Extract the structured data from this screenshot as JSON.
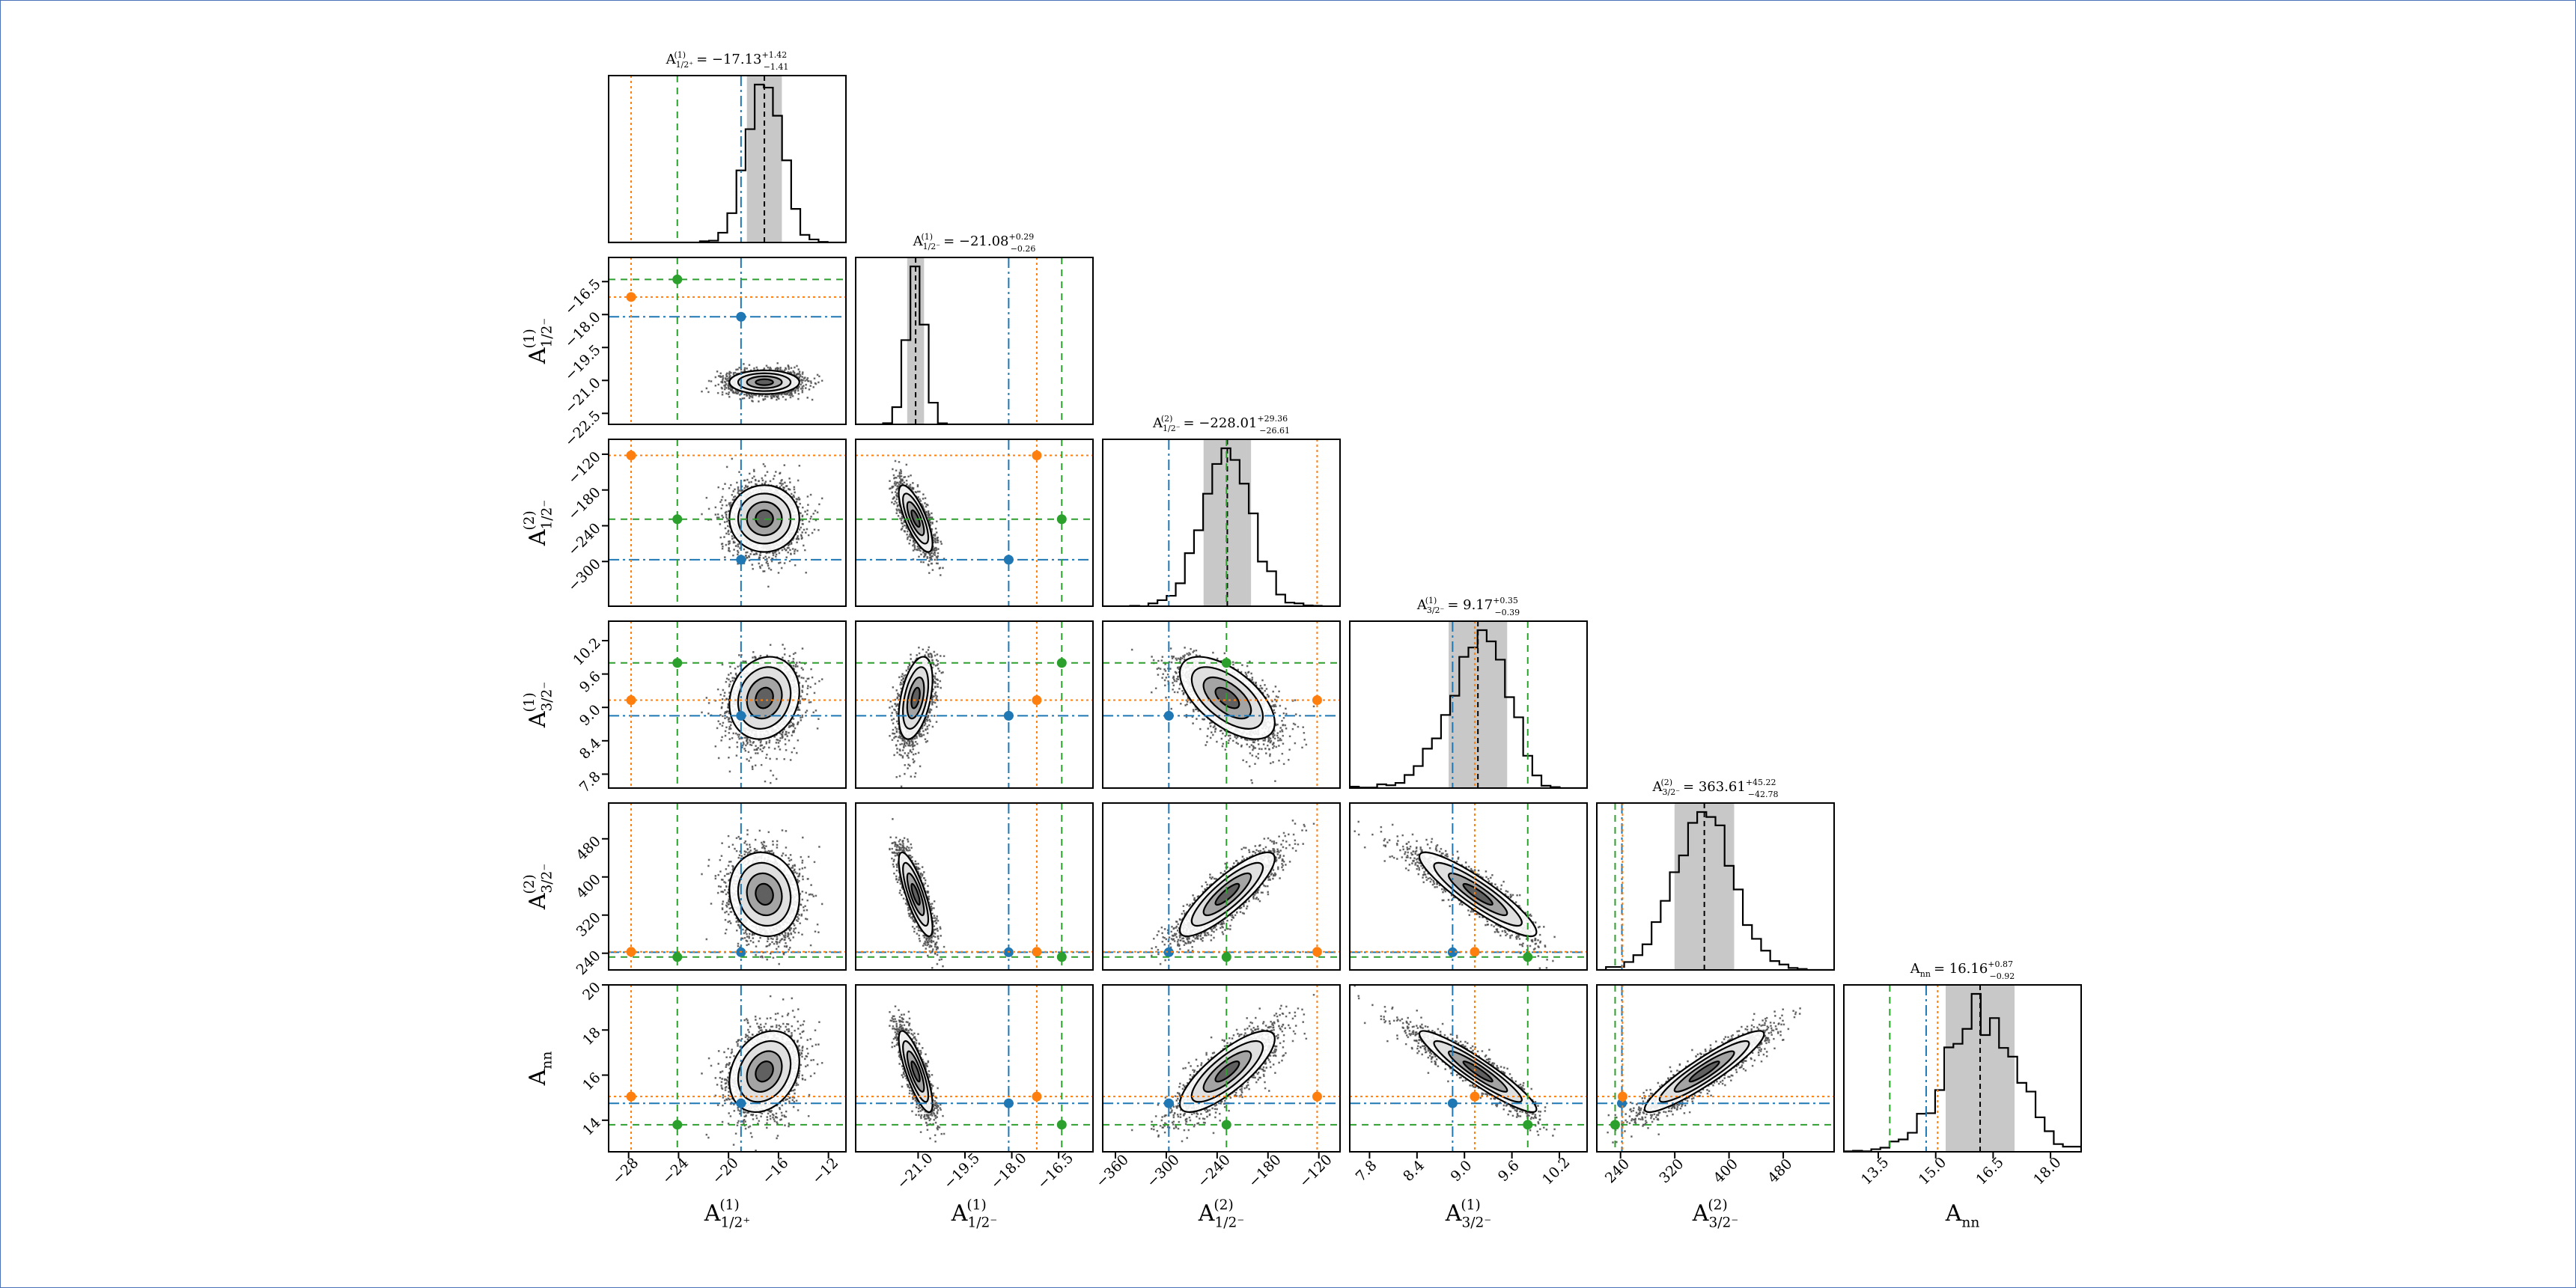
{
  "chart_data": {
    "type": "scatter",
    "kind": "corner-plot",
    "params": [
      {
        "key": "A1_12p",
        "sym": "A",
        "sup": "(1)",
        "sub": "1/2⁺",
        "median": "17.13",
        "sign": "−",
        "plus": "+1.42",
        "minus": "−1.41",
        "lim": [
          -29.6,
          -10.6
        ],
        "ticks": [
          "-28",
          "-24",
          "-20",
          "-16",
          "-12"
        ],
        "center": -17.13,
        "sd": 1.4,
        "skew": 0.0
      },
      {
        "key": "A1_12m",
        "sym": "A",
        "sup": "(1)",
        "sub": "1/2⁻",
        "median": "21.08",
        "sign": "−",
        "plus": "+0.29",
        "minus": "−0.26",
        "lim": [
          -23.0,
          -15.4
        ],
        "ticks": [
          "-21.0",
          "-19.5",
          "-18.0",
          "-16.5"
        ],
        "ticks_y": [
          "-16.5",
          "-18.0",
          "-19.5",
          "-21.0",
          "-22.5"
        ],
        "center": -21.08,
        "sd": 0.27,
        "skew": 0.0
      },
      {
        "key": "A2_12m",
        "sym": "A",
        "sup": "(2)",
        "sub": "1/2⁻",
        "median": "228.01",
        "sign": "−",
        "plus": "+29.36",
        "minus": "−26.61",
        "lim": [
          -375,
          -95
        ],
        "ticks": [
          "-360",
          "-300",
          "-240",
          "-180",
          "-120"
        ],
        "ticks_y": [
          "-120",
          "-180",
          "-240",
          "-300"
        ],
        "center": -228.0,
        "sd": 28,
        "skew": 0.0
      },
      {
        "key": "A1_32m",
        "sym": "A",
        "sup": "(1)",
        "sub": "3/2⁻",
        "median": "9.17",
        "sign": "",
        "plus": "+0.35",
        "minus": "−0.39",
        "lim": [
          7.55,
          10.55
        ],
        "ticks": [
          "7.8",
          "8.4",
          "9.0",
          "9.6",
          "10.2"
        ],
        "ticks_y": [
          "7.8",
          "8.4",
          "9.0",
          "9.6",
          "10.2"
        ],
        "center": 9.17,
        "sd": 0.37,
        "skew": -0.25
      },
      {
        "key": "A2_32m",
        "sym": "A",
        "sup": "(2)",
        "sub": "3/2⁻",
        "median": "363.61",
        "sign": "",
        "plus": "+45.22",
        "minus": "−42.78",
        "lim": [
          205,
          555
        ],
        "ticks": [
          "240",
          "320",
          "400",
          "480"
        ],
        "ticks_y": [
          "240",
          "320",
          "400",
          "480"
        ],
        "center": 363.6,
        "sd": 44,
        "skew": 0.0
      },
      {
        "key": "Ann",
        "sym": "A",
        "sup": "",
        "sub": "nn",
        "median": "16.16",
        "sign": "",
        "plus": "+0.87",
        "minus": "−0.92",
        "lim": [
          12.6,
          18.8
        ],
        "ticks": [
          "13.5",
          "15.0",
          "16.5",
          "18.0"
        ],
        "ticks_y": [
          "14",
          "16",
          "18",
          "20"
        ],
        "ylim_override": [
          12.6,
          20.0
        ],
        "center": 16.16,
        "sd": 0.9,
        "skew": 0.0
      }
    ],
    "correlations": [
      [
        1,
        0,
        0,
        0,
        0,
        0
      ],
      [
        0.0,
        1,
        0,
        0,
        0,
        0
      ],
      [
        0.0,
        -0.75,
        1,
        0,
        0,
        0
      ],
      [
        0.15,
        0.45,
        -0.6,
        1,
        0,
        0
      ],
      [
        -0.1,
        -0.8,
        0.85,
        -0.9,
        1,
        0
      ],
      [
        0.25,
        -0.8,
        0.8,
        -0.93,
        0.92,
        1
      ]
    ],
    "reference_lines": [
      {
        "name": "blue",
        "color": "#1f77b4",
        "style": "dashdot",
        "values": [
          -19.0,
          -18.1,
          -297,
          8.85,
          242,
          14.75
        ]
      },
      {
        "name": "orange",
        "color": "#ff7f0e",
        "style": "dotted",
        "values": [
          -27.8,
          -17.2,
          -122,
          9.13,
          243,
          15.05
        ]
      },
      {
        "name": "green",
        "color": "#2ca02c",
        "style": "dashed",
        "values": [
          -24.1,
          -16.4,
          -229,
          9.8,
          232,
          13.8
        ]
      }
    ],
    "xlabels_shown": true,
    "grid": false,
    "colors": {
      "hist_fill": "#c8c8c8",
      "hist_line": "#000000",
      "median_line": "#000000",
      "scatter": "#000000"
    }
  }
}
